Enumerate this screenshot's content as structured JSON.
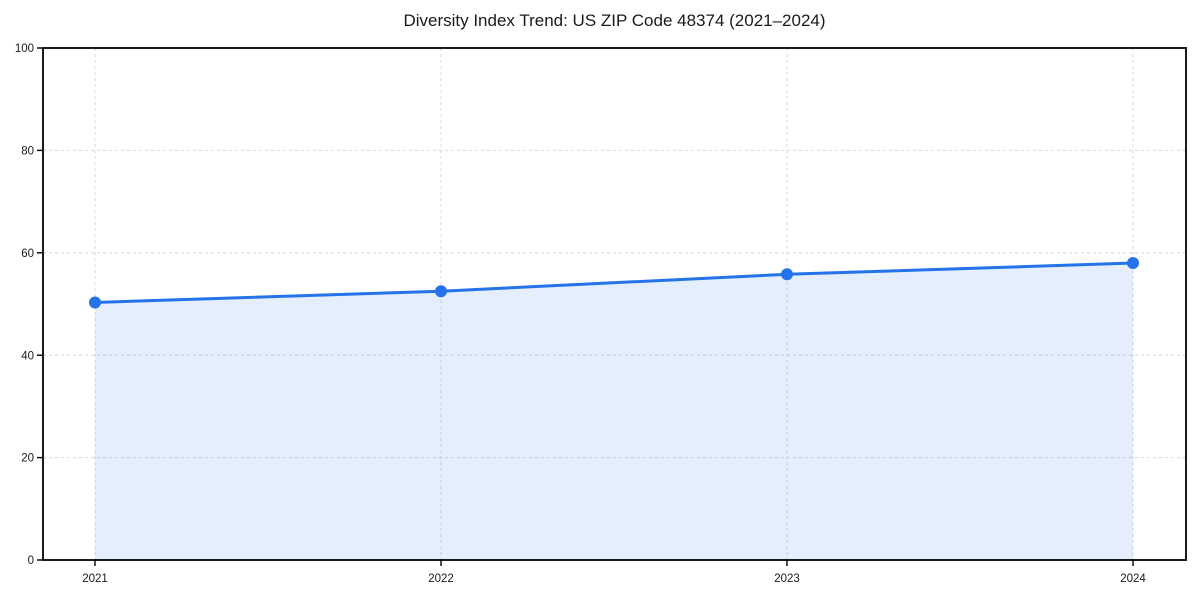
{
  "chart": {
    "title": "Diversity Index Trend: US ZIP Code 48374 (2021–2024)"
  },
  "chart_data": {
    "type": "area",
    "title": "Diversity Index Trend: US ZIP Code 48374 (2021–2024)",
    "x": [
      "2021",
      "2022",
      "2023",
      "2024"
    ],
    "series": [
      {
        "name": "Diversity Index",
        "values": [
          50.3,
          52.5,
          55.8,
          58.0
        ]
      }
    ],
    "xlabel": "",
    "ylabel": "",
    "ylim": [
      0,
      100
    ],
    "yticks": [
      0,
      20,
      40,
      60,
      80,
      100
    ],
    "grid": true,
    "grid_style": "dashed",
    "legend_position": "none",
    "line_color": "#2573e8",
    "marker_color": "#2573e8",
    "fill_color": "rgba(37, 115, 232, 0.12)",
    "grid_color": "#dcdcdc",
    "axis_color": "#000000",
    "tick_label_color": "#1a1a1a",
    "marker": "circle"
  }
}
